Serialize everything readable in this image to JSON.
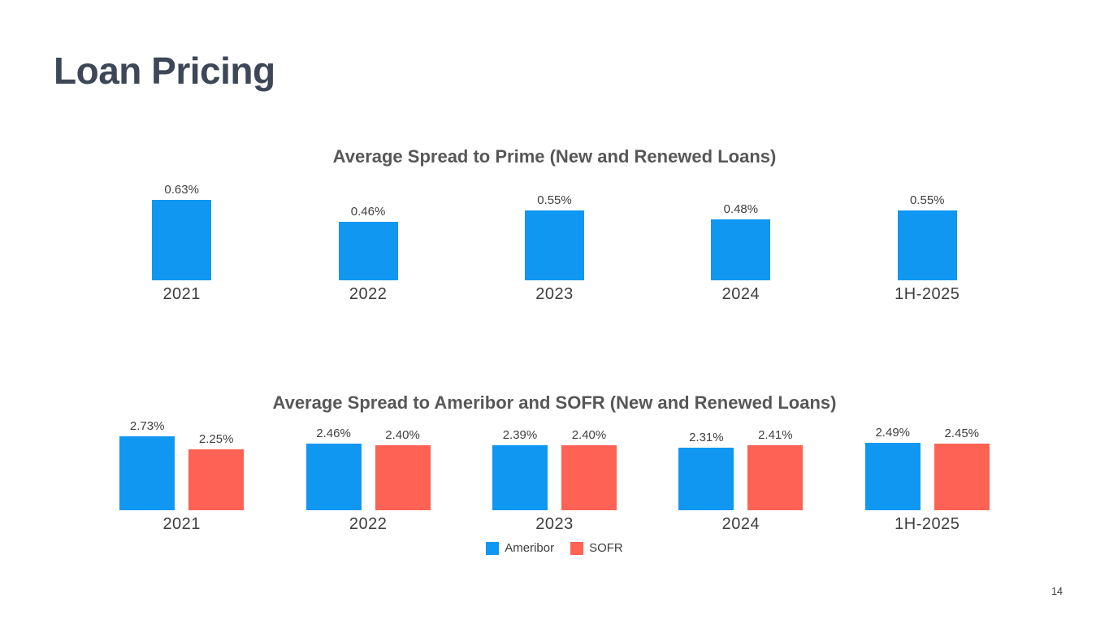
{
  "slide": {
    "title": "Loan Pricing",
    "page_number": "14"
  },
  "colors": {
    "accent_blue": "#0f97f2",
    "accent_red": "#fd6254",
    "slide_title": "#3d4757",
    "chart_title": "#575757",
    "background": "#ffffff"
  },
  "chart_data": [
    {
      "type": "bar",
      "title": "Average Spread to Prime (New and Renewed Loans)",
      "categories": [
        "2021",
        "2022",
        "2023",
        "2024",
        "1H-2025"
      ],
      "series": [
        {
          "name": "",
          "color": "#0f97f2",
          "values": [
            0.63,
            0.46,
            0.55,
            0.48,
            0.55
          ],
          "labels": [
            "0.63%",
            "0.46%",
            "0.55%",
            "0.48%",
            "0.55%"
          ]
        }
      ],
      "ylim": [
        0,
        0.7
      ],
      "grid": false,
      "axes_visible": false,
      "data_labels": true,
      "legend_position": "none"
    },
    {
      "type": "bar",
      "title": "Average Spread to Ameribor and SOFR (New and Renewed Loans)",
      "categories": [
        "2021",
        "2022",
        "2023",
        "2024",
        "1H-2025"
      ],
      "series": [
        {
          "name": "Ameribor",
          "color": "#0f97f2",
          "values": [
            2.73,
            2.46,
            2.39,
            2.31,
            2.49
          ],
          "labels": [
            "2.73%",
            "2.46%",
            "2.39%",
            "2.31%",
            "2.49%"
          ]
        },
        {
          "name": "SOFR",
          "color": "#fd6254",
          "values": [
            2.25,
            2.4,
            2.4,
            2.41,
            2.45
          ],
          "labels": [
            "2.25%",
            "2.40%",
            "2.40%",
            "2.41%",
            "2.45%"
          ]
        }
      ],
      "ylim": [
        0,
        3.0
      ],
      "grid": false,
      "axes_visible": false,
      "data_labels": true,
      "legend_position": "bottom"
    }
  ]
}
